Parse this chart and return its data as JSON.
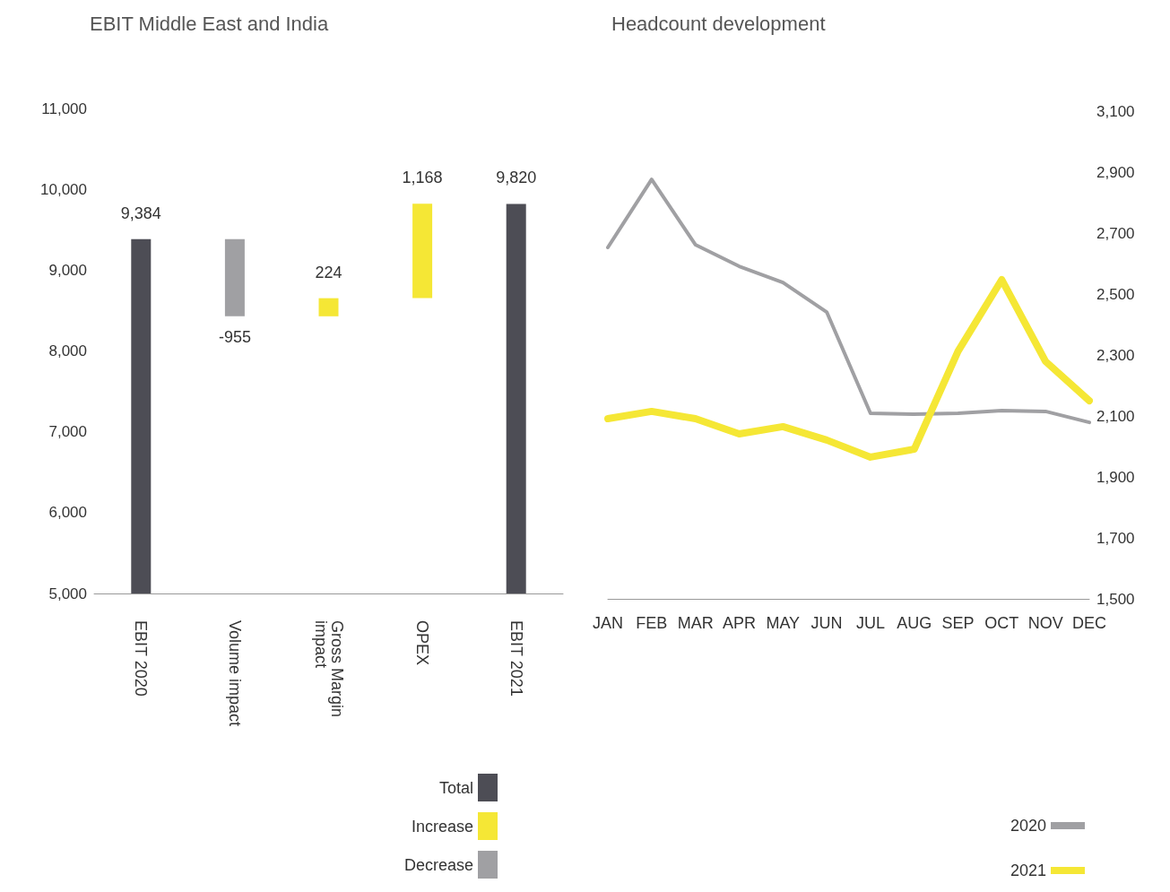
{
  "chart_data": [
    {
      "type": "bar",
      "title": "EBIT Middle East and India",
      "categories": [
        "EBIT 2020",
        "Volume impact",
        "Gross Margin impact",
        "OPEX",
        "EBIT 2021"
      ],
      "series": [
        {
          "name": "Total",
          "color": "#4d4d55",
          "values": [
            9384,
            null,
            null,
            null,
            9820
          ],
          "value_labels": [
            "9,384",
            null,
            null,
            null,
            "9,820"
          ]
        },
        {
          "name": "Increase",
          "color": "#f5e735",
          "values": [
            null,
            null,
            224,
            1168,
            null
          ],
          "base": [
            null,
            null,
            8429,
            8653,
            null
          ],
          "value_labels": [
            null,
            null,
            "224",
            "1,168",
            null
          ]
        },
        {
          "name": "Decrease",
          "color": "#a0a0a3",
          "values": [
            null,
            -955,
            null,
            null,
            null
          ],
          "base": [
            null,
            9384,
            null,
            null,
            null
          ],
          "value_labels": [
            null,
            "-955",
            null,
            null,
            null
          ]
        }
      ],
      "ylim": [
        5000,
        11000
      ],
      "yticks": [
        {
          "value": 5000,
          "label": "5,000"
        },
        {
          "value": 6000,
          "label": "6,000"
        },
        {
          "value": 7000,
          "label": "7,000"
        },
        {
          "value": 8000,
          "label": "8,000"
        },
        {
          "value": 9000,
          "label": "9,000"
        },
        {
          "value": 10000,
          "label": "10,000"
        },
        {
          "value": 11000,
          "label": "11,000"
        }
      ],
      "grid": false,
      "legend": "bottom right"
    },
    {
      "type": "line",
      "title": "Headcount development",
      "categories": [
        "JAN",
        "FEB",
        "MAR",
        "APR",
        "MAY",
        "JUN",
        "JUL",
        "AUG",
        "SEP",
        "OCT",
        "NOV",
        "DEC"
      ],
      "series": [
        {
          "name": "2020",
          "color": "#a0a0a3",
          "values": [
            2653,
            2876,
            2662,
            2591,
            2538,
            2441,
            2109,
            2106,
            2109,
            2118,
            2115,
            2079
          ]
        },
        {
          "name": "2021",
          "color": "#f5e735",
          "values": [
            2091,
            2115,
            2091,
            2041,
            2065,
            2021,
            1965,
            1991,
            2312,
            2547,
            2279,
            2150
          ]
        }
      ],
      "ylim": [
        1500,
        3100
      ],
      "yticks": [
        {
          "value": 1500,
          "label": "1,500"
        },
        {
          "value": 1700,
          "label": "1,700"
        },
        {
          "value": 1900,
          "label": "1,900"
        },
        {
          "value": 2100,
          "label": "2,100"
        },
        {
          "value": 2300,
          "label": "2,300"
        },
        {
          "value": 2500,
          "label": "2,500"
        },
        {
          "value": 2700,
          "label": "2,700"
        },
        {
          "value": 2900,
          "label": "2,900"
        },
        {
          "value": 3100,
          "label": "3,100"
        }
      ],
      "marker": "none",
      "line_style": "solid",
      "grid": false,
      "legend": "bottom right"
    }
  ]
}
